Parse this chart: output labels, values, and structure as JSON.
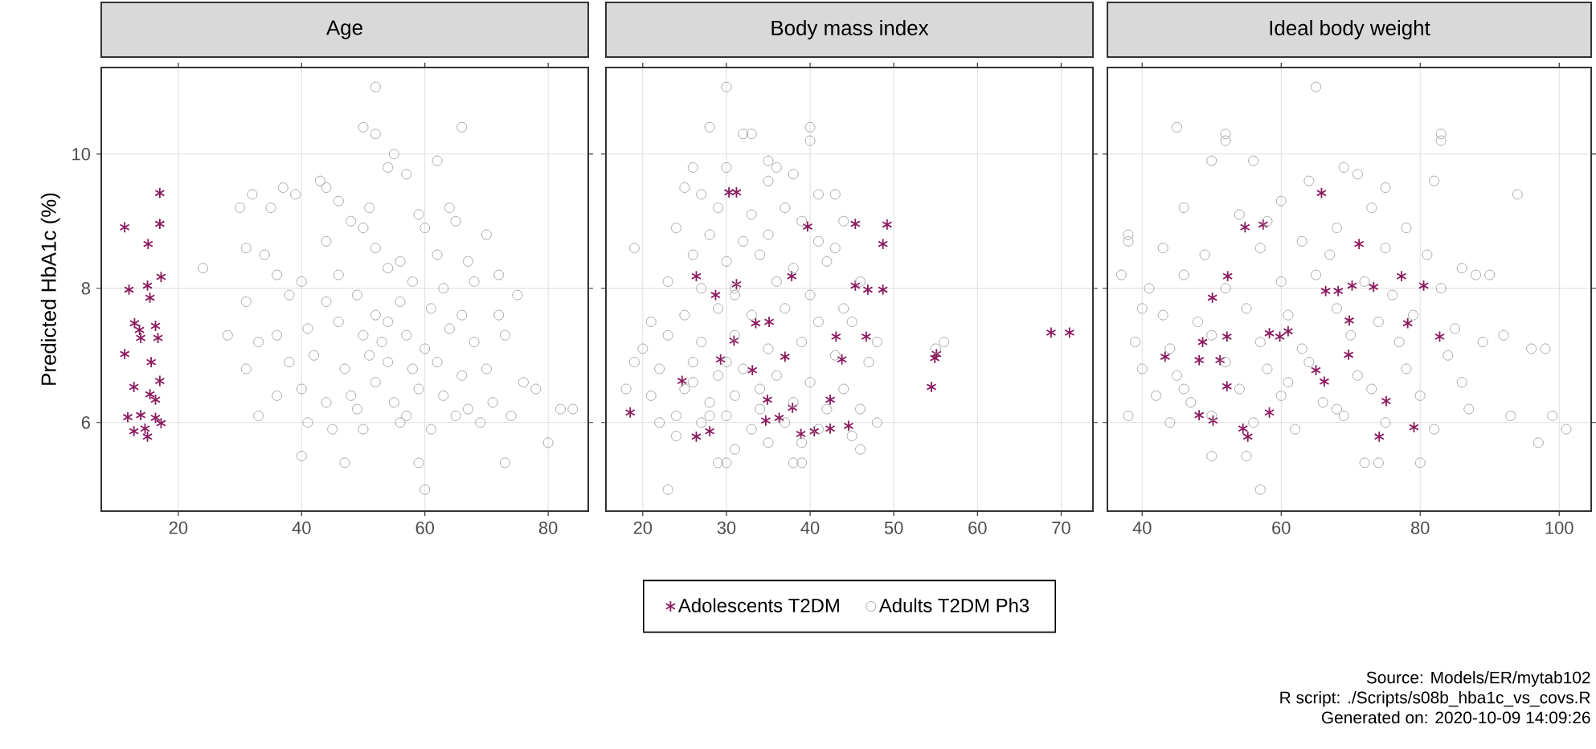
{
  "chart_data": [
    {
      "type": "scatter",
      "title": "Age",
      "ylabel": "Predicted HbA1c (%)",
      "xlim": [
        7.5,
        86.5
      ],
      "ylim": [
        4.68,
        11.29
      ],
      "xticks": [
        20,
        40,
        60,
        80
      ],
      "yticks": [
        6,
        8,
        10
      ],
      "grid": true,
      "series": [
        {
          "color": "#8b1a5e",
          "marker": "cross",
          "x": [
            11.3,
            17.0,
            17.0,
            15.1,
            12.0,
            15.0,
            17.2,
            15.4,
            12.9,
            13.7,
            16.3,
            16.7,
            11.3,
            15.6,
            17.0,
            12.8,
            16.3,
            16.3,
            11.8,
            13.9,
            12.8,
            15.0,
            14.6,
            17.2,
            15.4,
            13.9
          ],
          "values": [
            8.91,
            9.42,
            8.96,
            8.66,
            7.98,
            8.04,
            8.17,
            7.86,
            7.48,
            7.38,
            7.44,
            7.26,
            7.02,
            6.9,
            6.62,
            6.53,
            6.34,
            6.07,
            6.08,
            6.11,
            5.87,
            5.79,
            5.91,
            5.99,
            6.42,
            7.26
          ]
        },
        {
          "color": "#a6a6a6",
          "marker": "circle",
          "x": [
            52,
            50,
            52,
            66,
            62,
            55,
            54,
            57,
            43,
            44,
            32,
            37,
            39,
            30,
            35,
            46,
            51,
            59,
            64,
            65,
            48,
            50,
            60,
            70,
            31,
            34,
            44,
            52,
            56,
            62,
            67,
            24,
            36,
            40,
            46,
            54,
            58,
            63,
            68,
            72,
            75,
            31,
            38,
            44,
            49,
            56,
            61,
            66,
            72,
            28,
            33,
            36,
            41,
            46,
            50,
            53,
            57,
            60,
            64,
            68,
            73,
            31,
            38,
            42,
            47,
            51,
            54,
            58,
            62,
            66,
            70,
            76,
            78,
            82,
            84,
            36,
            40,
            44,
            48,
            52,
            55,
            59,
            63,
            67,
            71,
            74,
            33,
            41,
            45,
            50,
            56,
            61,
            65,
            69,
            80,
            40,
            47,
            59,
            73,
            60,
            52,
            54,
            49,
            57
          ],
          "values": [
            11.0,
            10.4,
            10.3,
            10.4,
            9.9,
            10.0,
            9.8,
            9.7,
            9.6,
            9.5,
            9.4,
            9.5,
            9.4,
            9.2,
            9.2,
            9.3,
            9.2,
            9.1,
            9.2,
            9.0,
            9.0,
            8.9,
            8.9,
            8.8,
            8.6,
            8.5,
            8.7,
            8.6,
            8.4,
            8.5,
            8.4,
            8.3,
            8.2,
            8.1,
            8.2,
            8.3,
            8.1,
            8.0,
            8.1,
            8.2,
            7.9,
            7.8,
            7.9,
            7.8,
            7.9,
            7.8,
            7.7,
            7.6,
            7.6,
            7.3,
            7.2,
            7.3,
            7.4,
            7.5,
            7.3,
            7.2,
            7.3,
            7.1,
            7.4,
            7.2,
            7.3,
            6.8,
            6.9,
            7.0,
            6.8,
            7.0,
            6.9,
            6.8,
            6.9,
            6.7,
            6.8,
            6.6,
            6.5,
            6.2,
            6.2,
            6.4,
            6.5,
            6.3,
            6.4,
            6.6,
            6.3,
            6.5,
            6.4,
            6.2,
            6.3,
            6.1,
            6.1,
            6.0,
            5.9,
            5.9,
            6.0,
            5.9,
            6.1,
            6.0,
            5.7,
            5.5,
            5.4,
            5.4,
            5.4,
            5.0,
            7.6,
            7.5,
            6.2,
            6.1
          ]
        }
      ]
    },
    {
      "type": "scatter",
      "title": "Body mass index",
      "xlim": [
        15.6,
        73.8
      ],
      "ylim": [
        4.68,
        11.29
      ],
      "xticks": [
        20,
        30,
        40,
        50,
        60,
        70
      ],
      "yticks": [
        6,
        8,
        10
      ],
      "grid": true,
      "tick_labels": "x",
      "legend": "bottom",
      "series": [
        {
          "name": "Adolescents T2DM",
          "color": "#8b1a5e",
          "marker": "cross",
          "x": [
            18.5,
            24.7,
            26.4,
            28.0,
            26.4,
            28.7,
            30.3,
            31.2,
            31.2,
            30.9,
            29.3,
            33.1,
            33.5,
            35.1,
            34.9,
            34.7,
            36.3,
            37.0,
            37.9,
            37.8,
            38.9,
            40.5,
            39.7,
            42.4,
            42.4,
            43.1,
            43.8,
            44.6,
            45.4,
            45.4,
            46.9,
            48.7,
            46.7,
            49.2,
            48.7,
            55.1,
            54.9,
            54.5,
            68.8,
            71.0
          ],
          "values": [
            6.15,
            6.62,
            5.79,
            5.87,
            8.18,
            7.9,
            9.43,
            9.43,
            8.06,
            7.22,
            6.94,
            6.78,
            7.48,
            7.5,
            6.34,
            6.03,
            6.07,
            6.98,
            6.22,
            8.18,
            5.83,
            5.87,
            8.92,
            5.91,
            6.34,
            7.28,
            6.94,
            5.95,
            8.96,
            8.04,
            7.98,
            7.98,
            7.28,
            8.95,
            8.66,
            7.02,
            6.96,
            6.53,
            7.34,
            7.34
          ]
        },
        {
          "name": "Adults T2DM Ph3",
          "color": "#a6a6a6",
          "marker": "circle",
          "x": [
            30,
            28,
            32,
            33,
            40,
            40,
            26,
            30,
            35,
            36,
            38,
            25,
            27,
            35,
            41,
            43,
            29,
            33,
            37,
            39,
            44,
            24,
            28,
            32,
            35,
            41,
            43,
            19,
            26,
            30,
            34,
            38,
            42,
            46,
            23,
            27,
            31,
            36,
            40,
            44,
            21,
            25,
            29,
            33,
            37,
            41,
            45,
            48,
            20,
            23,
            27,
            31,
            35,
            39,
            43,
            47,
            19,
            22,
            26,
            29,
            32,
            36,
            40,
            44,
            56,
            18,
            21,
            25,
            28,
            31,
            34,
            38,
            42,
            46,
            22,
            24,
            27,
            30,
            33,
            37,
            41,
            45,
            48,
            24,
            31,
            35,
            39,
            46,
            29,
            30,
            38,
            39,
            23,
            55,
            26,
            28,
            31,
            34,
            30
          ],
          "values": [
            11.0,
            10.4,
            10.3,
            10.3,
            10.4,
            10.2,
            9.8,
            9.8,
            9.9,
            9.8,
            9.7,
            9.5,
            9.4,
            9.6,
            9.4,
            9.4,
            9.2,
            9.1,
            9.2,
            9.0,
            9.0,
            8.9,
            8.8,
            8.7,
            8.8,
            8.7,
            8.6,
            8.6,
            8.5,
            8.4,
            8.5,
            8.3,
            8.4,
            8.1,
            8.1,
            8.0,
            8.0,
            8.1,
            7.9,
            7.7,
            7.5,
            7.6,
            7.7,
            7.6,
            7.7,
            7.5,
            7.5,
            7.2,
            7.1,
            7.3,
            7.2,
            7.3,
            7.1,
            7.2,
            7.0,
            6.9,
            6.9,
            6.8,
            6.9,
            6.7,
            6.8,
            6.7,
            6.6,
            6.5,
            7.2,
            6.5,
            6.4,
            6.5,
            6.3,
            6.4,
            6.5,
            6.3,
            6.2,
            6.2,
            6.0,
            6.1,
            6.0,
            6.1,
            5.9,
            6.0,
            5.9,
            5.8,
            6.0,
            5.8,
            5.6,
            5.7,
            5.7,
            5.6,
            5.4,
            5.4,
            5.4,
            5.4,
            5.0,
            7.1,
            6.6,
            6.1,
            7.9,
            6.2,
            6.9
          ]
        }
      ]
    },
    {
      "type": "scatter",
      "title": "Ideal body weight",
      "xlim": [
        35.0,
        104.6
      ],
      "ylim": [
        4.68,
        11.29
      ],
      "xticks": [
        40,
        60,
        80,
        100
      ],
      "yticks": [
        6,
        8,
        10
      ],
      "grid": true,
      "tick_labels": "x",
      "annotations": [
        "Source: Models/ER/mytab102",
        "R script: ./Scripts/s08b_hba1c_vs_covs.R",
        "Generated on: 2020-10-09 14:09:26"
      ],
      "series": [
        {
          "color": "#8b1a5e",
          "marker": "cross",
          "x": [
            43.3,
            48.7,
            48.2,
            50.1,
            52.3,
            52.2,
            51.2,
            52.2,
            48.2,
            50.2,
            54.5,
            55.2,
            54.8,
            57.4,
            58.3,
            59.8,
            61.0,
            58.3,
            65.8,
            66.4,
            68.2,
            70.2,
            65.0,
            66.2,
            69.8,
            69.7,
            71.2,
            73.3,
            75.1,
            74.1,
            77.3,
            80.5,
            78.2,
            82.8,
            79.1
          ],
          "values": [
            6.98,
            7.2,
            6.93,
            7.86,
            8.18,
            7.28,
            6.93,
            6.54,
            6.11,
            6.03,
            5.91,
            5.79,
            8.91,
            8.95,
            7.33,
            7.28,
            7.36,
            6.15,
            9.42,
            7.96,
            7.96,
            8.04,
            6.78,
            6.61,
            7.52,
            7.01,
            8.66,
            8.02,
            6.32,
            5.79,
            8.18,
            8.04,
            7.48,
            7.28,
            5.93
          ]
        },
        {
          "color": "#a6a6a6",
          "marker": "circle",
          "x": [
            65,
            45,
            52,
            52,
            83,
            83,
            50,
            56,
            69,
            71,
            82,
            94,
            64,
            75,
            60,
            73,
            46,
            54,
            58,
            68,
            78,
            38,
            38,
            43,
            49,
            57,
            63,
            67,
            75,
            81,
            86,
            88,
            37,
            41,
            46,
            52,
            60,
            65,
            72,
            76,
            83,
            90,
            40,
            43,
            48,
            55,
            61,
            68,
            74,
            79,
            85,
            92,
            39,
            44,
            50,
            57,
            63,
            70,
            77,
            84,
            89,
            96,
            98,
            40,
            45,
            52,
            58,
            64,
            71,
            78,
            86,
            42,
            47,
            54,
            60,
            66,
            73,
            80,
            87,
            38,
            44,
            50,
            56,
            62,
            69,
            75,
            82,
            93,
            101,
            99,
            50,
            55,
            72,
            74,
            80,
            57,
            97,
            46,
            61,
            68
          ],
          "values": [
            11.0,
            10.4,
            10.3,
            10.2,
            10.3,
            10.2,
            9.9,
            9.9,
            9.8,
            9.7,
            9.6,
            9.4,
            9.6,
            9.5,
            9.3,
            9.2,
            9.2,
            9.1,
            9.0,
            8.9,
            8.9,
            8.8,
            8.7,
            8.6,
            8.5,
            8.6,
            8.7,
            8.5,
            8.6,
            8.5,
            8.3,
            8.2,
            8.2,
            8.0,
            8.2,
            8.0,
            8.1,
            8.2,
            8.1,
            7.9,
            8.0,
            8.2,
            7.7,
            7.6,
            7.5,
            7.7,
            7.6,
            7.7,
            7.5,
            7.6,
            7.4,
            7.3,
            7.2,
            7.1,
            7.3,
            7.2,
            7.1,
            7.3,
            7.2,
            7.0,
            7.2,
            7.1,
            7.1,
            6.8,
            6.7,
            6.9,
            6.8,
            6.9,
            6.7,
            6.8,
            6.6,
            6.4,
            6.3,
            6.5,
            6.4,
            6.3,
            6.5,
            6.4,
            6.2,
            6.1,
            6.0,
            6.1,
            6.0,
            5.9,
            6.1,
            6.0,
            5.9,
            6.1,
            5.9,
            6.1,
            5.5,
            5.5,
            5.4,
            5.4,
            5.4,
            5.0,
            5.7,
            6.5,
            6.6,
            6.2
          ]
        }
      ]
    }
  ]
}
